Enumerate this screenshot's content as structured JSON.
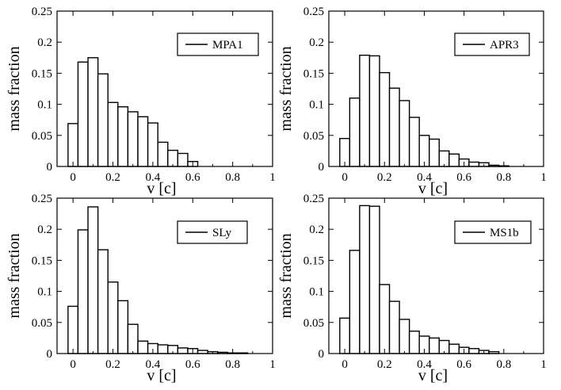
{
  "chart_data": [
    {
      "type": "bar",
      "title": "",
      "xlabel": "v [c]",
      "ylabel": "mass fraction",
      "xlim": [
        -0.08,
        1
      ],
      "ylim": [
        0,
        0.25
      ],
      "xticks": [
        "0",
        "0.2",
        "0.4",
        "0.6",
        "0.8",
        "1"
      ],
      "yticks": [
        "0",
        "0.05",
        "0.1",
        "0.15",
        "0.2",
        "0.25"
      ],
      "legend": "top-right",
      "bin_width": 0.05,
      "series": [
        {
          "name": "MPA1",
          "bin_starts": [
            -0.025,
            0.025,
            0.075,
            0.125,
            0.175,
            0.225,
            0.275,
            0.325,
            0.375,
            0.425,
            0.475,
            0.525,
            0.575
          ],
          "values": [
            0.069,
            0.168,
            0.175,
            0.149,
            0.103,
            0.096,
            0.088,
            0.08,
            0.07,
            0.039,
            0.026,
            0.021,
            0.008
          ]
        }
      ]
    },
    {
      "type": "bar",
      "title": "",
      "xlabel": "v [c]",
      "ylabel": "mass fraction",
      "xlim": [
        -0.08,
        1
      ],
      "ylim": [
        0,
        0.25
      ],
      "xticks": [
        "0",
        "0.2",
        "0.4",
        "0.6",
        "0.8",
        "1"
      ],
      "yticks": [
        "0",
        "0.05",
        "0.1",
        "0.15",
        "0.2",
        "0.25"
      ],
      "legend": "top-right",
      "bin_width": 0.05,
      "series": [
        {
          "name": "APR3",
          "bin_starts": [
            -0.025,
            0.025,
            0.075,
            0.125,
            0.175,
            0.225,
            0.275,
            0.325,
            0.375,
            0.425,
            0.475,
            0.525,
            0.575,
            0.625,
            0.675,
            0.725,
            0.775
          ],
          "values": [
            0.045,
            0.11,
            0.179,
            0.178,
            0.151,
            0.126,
            0.106,
            0.079,
            0.05,
            0.044,
            0.025,
            0.02,
            0.012,
            0.007,
            0.006,
            0.002,
            0.001
          ]
        }
      ]
    },
    {
      "type": "bar",
      "title": "",
      "xlabel": "v [c]",
      "ylabel": "mass fraction",
      "xlim": [
        -0.08,
        1
      ],
      "ylim": [
        0,
        0.25
      ],
      "xticks": [
        "0",
        "0.2",
        "0.4",
        "0.6",
        "0.8",
        "1"
      ],
      "yticks": [
        "0",
        "0.05",
        "0.1",
        "0.15",
        "0.2",
        "0.25"
      ],
      "legend": "top-right",
      "bin_width": 0.05,
      "series": [
        {
          "name": "SLy",
          "bin_starts": [
            -0.025,
            0.025,
            0.075,
            0.125,
            0.175,
            0.225,
            0.275,
            0.325,
            0.375,
            0.425,
            0.475,
            0.525,
            0.575,
            0.625,
            0.675,
            0.725,
            0.775,
            0.825
          ],
          "values": [
            0.076,
            0.199,
            0.236,
            0.167,
            0.115,
            0.085,
            0.047,
            0.02,
            0.016,
            0.014,
            0.013,
            0.009,
            0.008,
            0.005,
            0.003,
            0.002,
            0.001,
            0.001
          ]
        }
      ]
    },
    {
      "type": "bar",
      "title": "",
      "xlabel": "v [c]",
      "ylabel": "mass fraction",
      "xlim": [
        -0.08,
        1
      ],
      "ylim": [
        0,
        0.25
      ],
      "xticks": [
        "0",
        "0.2",
        "0.4",
        "0.6",
        "0.8",
        "1"
      ],
      "yticks": [
        "0",
        "0.05",
        "0.1",
        "0.15",
        "0.2",
        "0.25"
      ],
      "legend": "top-right",
      "bin_width": 0.05,
      "series": [
        {
          "name": "MS1b",
          "bin_starts": [
            -0.025,
            0.025,
            0.075,
            0.125,
            0.175,
            0.225,
            0.275,
            0.325,
            0.375,
            0.425,
            0.475,
            0.525,
            0.575,
            0.625,
            0.675,
            0.725
          ],
          "values": [
            0.057,
            0.166,
            0.238,
            0.237,
            0.111,
            0.084,
            0.055,
            0.036,
            0.028,
            0.025,
            0.021,
            0.015,
            0.01,
            0.008,
            0.005,
            0.003
          ]
        }
      ]
    }
  ]
}
